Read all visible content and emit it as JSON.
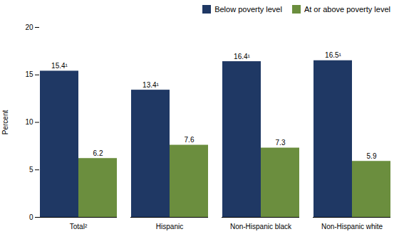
{
  "chart_data": {
    "type": "bar",
    "categories": [
      "Total²",
      "Hispanic",
      "Non-Hispanic black",
      "Non-Hispanic white"
    ],
    "series": [
      {
        "name": "Below poverty level",
        "color": "#1F3864",
        "values": [
          15.4,
          13.4,
          16.4,
          16.5
        ],
        "value_labels": [
          "15.4¹",
          "13.4¹",
          "16.4¹",
          "16.5¹"
        ]
      },
      {
        "name": "At or above poverty level",
        "color": "#6B8E3E",
        "values": [
          6.2,
          7.6,
          7.3,
          5.9
        ],
        "value_labels": [
          "6.2",
          "7.6",
          "7.3",
          "5.9"
        ]
      }
    ],
    "ylabel": "Percent",
    "ylim": [
      0,
      20
    ],
    "yticks": [
      0,
      5,
      10,
      15,
      20
    ],
    "grid": false,
    "legend": "upper right",
    "data_labels": true
  }
}
